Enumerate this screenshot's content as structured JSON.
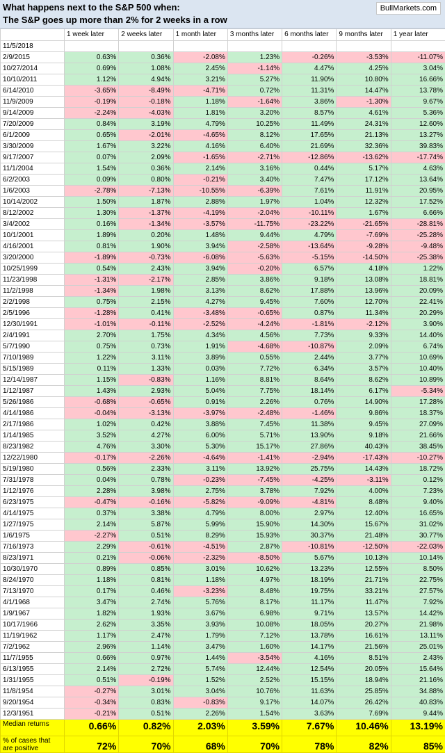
{
  "header": {
    "title_line1": "What happens next to the S&P 500 when:",
    "title_line2": "The S&P goes up more than 2% for 2 weeks in a row",
    "brand": "BullMarkets.com"
  },
  "columns": [
    "",
    "1 week later",
    "2 weeks later",
    "1 month later",
    "3 months later",
    "6 months later",
    "9 months later",
    "1 year later"
  ],
  "rows": [
    {
      "date": "11/5/2018",
      "v": []
    },
    {
      "date": "2/9/2015",
      "v": [
        "0.63%",
        "0.36%",
        "-2.08%",
        "1.23%",
        "-0.26%",
        "-3.53%",
        "-11.07%"
      ]
    },
    {
      "date": "10/27/2014",
      "v": [
        "0.69%",
        "1.08%",
        "2.45%",
        "-1.14%",
        "4.47%",
        "4.25%",
        "3.04%"
      ]
    },
    {
      "date": "10/10/2011",
      "v": [
        "1.12%",
        "4.94%",
        "3.21%",
        "5.27%",
        "11.90%",
        "10.80%",
        "16.66%"
      ]
    },
    {
      "date": "6/14/2010",
      "v": [
        "-3.65%",
        "-8.49%",
        "-4.71%",
        "0.72%",
        "11.31%",
        "14.47%",
        "13.78%"
      ]
    },
    {
      "date": "11/9/2009",
      "v": [
        "-0.19%",
        "-0.18%",
        "1.18%",
        "-1.64%",
        "3.86%",
        "-1.30%",
        "9.67%"
      ]
    },
    {
      "date": "9/14/2009",
      "v": [
        "-2.24%",
        "-4.03%",
        "1.81%",
        "3.20%",
        "8.57%",
        "4.61%",
        "5.36%"
      ]
    },
    {
      "date": "7/20/2009",
      "v": [
        "0.84%",
        "3.19%",
        "4.79%",
        "10.25%",
        "11.49%",
        "24.31%",
        "12.60%"
      ]
    },
    {
      "date": "6/1/2009",
      "v": [
        "0.65%",
        "-2.01%",
        "-4.65%",
        "8.12%",
        "17.65%",
        "21.13%",
        "13.27%"
      ]
    },
    {
      "date": "3/30/2009",
      "v": [
        "1.67%",
        "3.22%",
        "4.16%",
        "6.40%",
        "21.69%",
        "32.36%",
        "39.83%"
      ]
    },
    {
      "date": "9/17/2007",
      "v": [
        "0.07%",
        "2.09%",
        "-1.65%",
        "-2.71%",
        "-12.86%",
        "-13.62%",
        "-17.74%"
      ]
    },
    {
      "date": "11/1/2004",
      "v": [
        "1.54%",
        "0.36%",
        "2.14%",
        "3.16%",
        "0.44%",
        "5.17%",
        "4.63%"
      ]
    },
    {
      "date": "6/2/2003",
      "v": [
        "0.09%",
        "0.80%",
        "-0.21%",
        "3.40%",
        "7.47%",
        "17.12%",
        "13.64%"
      ]
    },
    {
      "date": "1/6/2003",
      "v": [
        "-2.78%",
        "-7.13%",
        "-10.55%",
        "-6.39%",
        "7.61%",
        "11.91%",
        "20.95%"
      ]
    },
    {
      "date": "10/14/2002",
      "v": [
        "1.50%",
        "1.87%",
        "2.88%",
        "1.97%",
        "1.04%",
        "12.32%",
        "17.52%"
      ]
    },
    {
      "date": "8/12/2002",
      "v": [
        "1.30%",
        "-1.37%",
        "-4.19%",
        "-2.04%",
        "-10.11%",
        "1.67%",
        "6.66%"
      ]
    },
    {
      "date": "3/4/2002",
      "v": [
        "0.16%",
        "-1.34%",
        "-3.57%",
        "-11.75%",
        "-23.22%",
        "-21.65%",
        "-28.81%"
      ]
    },
    {
      "date": "10/1/2001",
      "v": [
        "1.89%",
        "0.20%",
        "1.48%",
        "9.44%",
        "4.79%",
        "-7.69%",
        "-25.28%"
      ]
    },
    {
      "date": "4/16/2001",
      "v": [
        "0.81%",
        "1.90%",
        "3.94%",
        "-2.58%",
        "-13.64%",
        "-9.28%",
        "-9.48%"
      ]
    },
    {
      "date": "3/20/2000",
      "v": [
        "-1.89%",
        "-0.73%",
        "-6.08%",
        "-5.63%",
        "-5.15%",
        "-14.50%",
        "-25.38%"
      ]
    },
    {
      "date": "10/25/1999",
      "v": [
        "0.54%",
        "2.43%",
        "3.94%",
        "-0.20%",
        "6.57%",
        "4.18%",
        "1.22%"
      ]
    },
    {
      "date": "11/23/1998",
      "v": [
        "-1.31%",
        "-2.17%",
        "2.85%",
        "3.86%",
        "9.18%",
        "13.08%",
        "18.81%"
      ]
    },
    {
      "date": "11/2/1998",
      "v": [
        "-1.34%",
        "1.98%",
        "3.13%",
        "8.62%",
        "17.88%",
        "13.96%",
        "20.09%"
      ]
    },
    {
      "date": "2/2/1998",
      "v": [
        "0.75%",
        "2.15%",
        "4.27%",
        "9.45%",
        "7.60%",
        "12.70%",
        "22.41%"
      ]
    },
    {
      "date": "2/5/1996",
      "v": [
        "-1.28%",
        "0.41%",
        "-3.48%",
        "-0.65%",
        "0.87%",
        "11.34%",
        "20.29%"
      ]
    },
    {
      "date": "12/30/1991",
      "v": [
        "-1.01%",
        "-0.11%",
        "-2.52%",
        "-4.24%",
        "-1.81%",
        "-2.12%",
        "3.90%"
      ]
    },
    {
      "date": "2/4/1991",
      "v": [
        "2.70%",
        "1.75%",
        "4.34%",
        "4.56%",
        "7.73%",
        "9.33%",
        "14.40%"
      ]
    },
    {
      "date": "5/7/1990",
      "v": [
        "0.75%",
        "0.73%",
        "1.91%",
        "-4.68%",
        "-10.87%",
        "2.09%",
        "6.74%"
      ]
    },
    {
      "date": "7/10/1989",
      "v": [
        "1.22%",
        "3.11%",
        "3.89%",
        "0.55%",
        "2.44%",
        "3.77%",
        "10.69%"
      ]
    },
    {
      "date": "5/15/1989",
      "v": [
        "0.11%",
        "1.33%",
        "0.03%",
        "7.72%",
        "6.34%",
        "3.57%",
        "10.40%"
      ]
    },
    {
      "date": "12/14/1987",
      "v": [
        "1.15%",
        "-0.83%",
        "1.16%",
        "8.81%",
        "8.64%",
        "8.62%",
        "10.89%"
      ]
    },
    {
      "date": "1/12/1987",
      "v": [
        "1.43%",
        "2.93%",
        "5.04%",
        "7.75%",
        "18.14%",
        "6.17%",
        "-5.34%"
      ]
    },
    {
      "date": "5/26/1986",
      "v": [
        "-0.68%",
        "-0.65%",
        "0.91%",
        "2.26%",
        "0.76%",
        "14.90%",
        "17.28%"
      ]
    },
    {
      "date": "4/14/1986",
      "v": [
        "-0.04%",
        "-3.13%",
        "-3.97%",
        "-2.48%",
        "-1.46%",
        "9.86%",
        "18.37%"
      ]
    },
    {
      "date": "2/17/1986",
      "v": [
        "1.02%",
        "0.42%",
        "3.88%",
        "7.45%",
        "11.38%",
        "9.45%",
        "27.09%"
      ]
    },
    {
      "date": "1/14/1985",
      "v": [
        "3.52%",
        "4.27%",
        "6.00%",
        "5.71%",
        "13.90%",
        "9.18%",
        "21.66%"
      ]
    },
    {
      "date": "8/23/1982",
      "v": [
        "4.76%",
        "3.30%",
        "5.30%",
        "15.17%",
        "27.86%",
        "40.43%",
        "38.45%"
      ]
    },
    {
      "date": "12/22/1980",
      "v": [
        "-0.17%",
        "-2.26%",
        "-4.64%",
        "-1.41%",
        "-2.94%",
        "-17.43%",
        "-10.27%"
      ]
    },
    {
      "date": "5/19/1980",
      "v": [
        "0.56%",
        "2.33%",
        "3.11%",
        "13.92%",
        "25.75%",
        "14.43%",
        "18.72%"
      ]
    },
    {
      "date": "7/31/1978",
      "v": [
        "0.04%",
        "0.78%",
        "-0.23%",
        "-7.45%",
        "-4.25%",
        "-3.11%",
        "0.12%"
      ]
    },
    {
      "date": "1/12/1976",
      "v": [
        "2.28%",
        "3.98%",
        "2.75%",
        "3.78%",
        "7.92%",
        "4.00%",
        "7.23%"
      ]
    },
    {
      "date": "6/23/1975",
      "v": [
        "-0.47%",
        "-0.16%",
        "-5.82%",
        "-9.09%",
        "-4.81%",
        "8.48%",
        "9.40%"
      ]
    },
    {
      "date": "4/14/1975",
      "v": [
        "0.37%",
        "3.38%",
        "4.79%",
        "8.00%",
        "2.97%",
        "12.40%",
        "16.65%"
      ]
    },
    {
      "date": "1/27/1975",
      "v": [
        "2.14%",
        "5.87%",
        "5.99%",
        "15.90%",
        "14.30%",
        "15.67%",
        "31.02%"
      ]
    },
    {
      "date": "1/6/1975",
      "v": [
        "-2.27%",
        "0.51%",
        "8.29%",
        "15.93%",
        "30.37%",
        "21.48%",
        "30.77%"
      ]
    },
    {
      "date": "7/16/1973",
      "v": [
        "2.29%",
        "-0.61%",
        "-4.51%",
        "2.87%",
        "-10.81%",
        "-12.50%",
        "-22.03%"
      ]
    },
    {
      "date": "8/23/1971",
      "v": [
        "0.21%",
        "-0.06%",
        "-2.32%",
        "-8.50%",
        "5.67%",
        "10.13%",
        "10.14%"
      ]
    },
    {
      "date": "10/30/1970",
      "v": [
        "0.89%",
        "0.85%",
        "3.01%",
        "10.62%",
        "13.23%",
        "12.55%",
        "8.50%"
      ]
    },
    {
      "date": "8/24/1970",
      "v": [
        "1.18%",
        "0.81%",
        "1.18%",
        "4.97%",
        "18.19%",
        "21.71%",
        "22.75%"
      ]
    },
    {
      "date": "7/13/1970",
      "v": [
        "0.17%",
        "0.46%",
        "-3.23%",
        "8.48%",
        "19.75%",
        "33.21%",
        "27.57%"
      ]
    },
    {
      "date": "4/1/1968",
      "v": [
        "3.47%",
        "2.74%",
        "5.76%",
        "8.17%",
        "11.17%",
        "11.47%",
        "7.92%"
      ]
    },
    {
      "date": "1/9/1967",
      "v": [
        "1.82%",
        "1.93%",
        "3.67%",
        "6.98%",
        "9.71%",
        "13.57%",
        "14.42%"
      ]
    },
    {
      "date": "10/17/1966",
      "v": [
        "2.62%",
        "3.35%",
        "3.93%",
        "10.08%",
        "18.05%",
        "20.27%",
        "21.98%"
      ]
    },
    {
      "date": "11/19/1962",
      "v": [
        "1.17%",
        "2.47%",
        "1.79%",
        "7.12%",
        "13.78%",
        "16.61%",
        "13.11%"
      ]
    },
    {
      "date": "7/2/1962",
      "v": [
        "2.96%",
        "1.14%",
        "3.47%",
        "1.60%",
        "14.17%",
        "21.56%",
        "25.01%"
      ]
    },
    {
      "date": "11/7/1955",
      "v": [
        "0.66%",
        "0.97%",
        "1.44%",
        "-3.54%",
        "4.16%",
        "8.51%",
        "2.43%"
      ]
    },
    {
      "date": "6/13/1955",
      "v": [
        "2.14%",
        "2.72%",
        "5.74%",
        "12.44%",
        "12.54%",
        "20.05%",
        "15.64%"
      ]
    },
    {
      "date": "1/31/1955",
      "v": [
        "0.51%",
        "-0.19%",
        "1.52%",
        "2.52%",
        "15.15%",
        "18.94%",
        "21.16%"
      ]
    },
    {
      "date": "11/8/1954",
      "v": [
        "-0.27%",
        "3.01%",
        "3.04%",
        "10.76%",
        "11.63%",
        "25.85%",
        "34.88%"
      ]
    },
    {
      "date": "9/20/1954",
      "v": [
        "-0.34%",
        "0.83%",
        "-0.83%",
        "9.17%",
        "14.07%",
        "26.42%",
        "40.83%"
      ]
    },
    {
      "date": "12/3/1951",
      "v": [
        "-0.21%",
        "0.51%",
        "2.26%",
        "1.54%",
        "3.63%",
        "7.69%",
        "9.44%"
      ]
    }
  ],
  "summary": {
    "median_label": "Median returns",
    "median": [
      "0.66%",
      "0.82%",
      "2.03%",
      "3.59%",
      "7.67%",
      "10.46%",
      "13.19%"
    ],
    "positive_label": "% of cases that are positive",
    "positive": [
      "72%",
      "70%",
      "68%",
      "70%",
      "78%",
      "82%",
      "85%"
    ]
  },
  "colors": {
    "positive": "#c6efce",
    "negative": "#ffc7ce",
    "summary": "#ffff00",
    "header": "#dbe5f1"
  }
}
